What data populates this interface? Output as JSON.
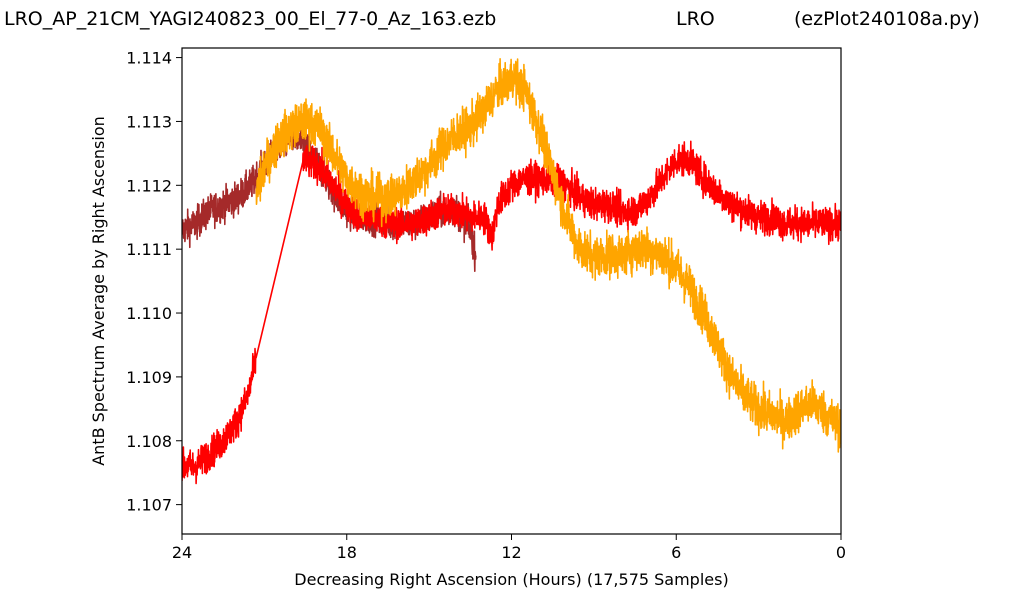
{
  "header": {
    "left": "LRO_AP_21CM_YAGI240823_00_El_77-0_Az_163.ezb",
    "middle": "LRO",
    "right": "(ezPlot240108a.py)"
  },
  "chart_data": {
    "type": "line",
    "xlabel": "Decreasing Right Ascension (Hours) (17,575 Samples)",
    "ylabel": "AntB Spectrum Average by Right Ascension",
    "xlim": [
      24,
      0
    ],
    "ylim": [
      1.10654,
      1.11415
    ],
    "x_ticks": [
      24,
      18,
      12,
      6,
      0
    ],
    "y_ticks": [
      "1.107",
      "1.108",
      "1.109",
      "1.110",
      "1.111",
      "1.112",
      "1.113",
      "1.114"
    ],
    "grid": false,
    "series": [
      {
        "color": "#a52a2a",
        "noise": 0.00045,
        "x": [
          24,
          23.5,
          23,
          22.5,
          22,
          21.5,
          21,
          20.5,
          20,
          19.5,
          19,
          18.5,
          18,
          17.5,
          17,
          16.5,
          16,
          15.5,
          15,
          14.5,
          14,
          13.5,
          13.3
        ],
        "y": [
          1.1113,
          1.1114,
          1.1116,
          1.1117,
          1.1118,
          1.112,
          1.1123,
          1.1126,
          1.1128,
          1.1126,
          1.1123,
          1.1119,
          1.1116,
          1.1115,
          1.1115,
          1.1114,
          1.1114,
          1.1114,
          1.1115,
          1.1116,
          1.1116,
          1.1113,
          1.1109
        ]
      },
      {
        "color": "#ff0000",
        "noise": 0.00045,
        "x": [
          24,
          23.5,
          23,
          22.5,
          22,
          21.6,
          21.3,
          19.6,
          19,
          18.5,
          18,
          17.5,
          17,
          16.5,
          16,
          15.5,
          15,
          14.5,
          14,
          13.5,
          13,
          12.7,
          12.5,
          12,
          11.5,
          11,
          10.5,
          10,
          9.5,
          9,
          8.5,
          8,
          7.5,
          7,
          6.5,
          6,
          5.5,
          5,
          4.5,
          4,
          3.5,
          3,
          2.5,
          2,
          1.5,
          1,
          0.5,
          0
        ],
        "y": [
          1.1076,
          1.1076,
          1.1078,
          1.108,
          1.1083,
          1.1087,
          1.1093,
          1.1124,
          1.1123,
          1.112,
          1.1117,
          1.1115,
          1.1115,
          1.1114,
          1.1114,
          1.1114,
          1.1115,
          1.1116,
          1.1116,
          1.1115,
          1.1115,
          1.1112,
          1.1117,
          1.112,
          1.1121,
          1.1121,
          1.1121,
          1.112,
          1.1118,
          1.1117,
          1.1117,
          1.1116,
          1.1116,
          1.1118,
          1.1121,
          1.1124,
          1.1124,
          1.1121,
          1.1119,
          1.1117,
          1.1116,
          1.1115,
          1.1115,
          1.1114,
          1.1114,
          1.1114,
          1.1114,
          1.1114
        ]
      },
      {
        "color": "#ffa500",
        "noise": 0.0006,
        "x": [
          21.3,
          21,
          20.5,
          20,
          19.5,
          19,
          18.5,
          18,
          17.5,
          17,
          16.5,
          16,
          15.5,
          15,
          14.5,
          14,
          13.5,
          13,
          12.5,
          12,
          11.5,
          11,
          10.5,
          10,
          9.5,
          9,
          8.5,
          8,
          7.5,
          7,
          6.5,
          6,
          5.5,
          5,
          4.5,
          4,
          3.5,
          3,
          2.5,
          2,
          1.5,
          1,
          0.5,
          0
        ],
        "y": [
          1.1118,
          1.1123,
          1.1127,
          1.1129,
          1.113,
          1.1129,
          1.1125,
          1.1121,
          1.1119,
          1.1118,
          1.1118,
          1.1119,
          1.1121,
          1.1123,
          1.1126,
          1.1128,
          1.1129,
          1.1132,
          1.1135,
          1.1137,
          1.1135,
          1.1129,
          1.1122,
          1.1115,
          1.111,
          1.1109,
          1.1109,
          1.1109,
          1.111,
          1.111,
          1.1109,
          1.1107,
          1.1104,
          1.11,
          1.1095,
          1.109,
          1.1087,
          1.1085,
          1.1084,
          1.1083,
          1.1085,
          1.1086,
          1.1084,
          1.1082
        ]
      }
    ]
  }
}
